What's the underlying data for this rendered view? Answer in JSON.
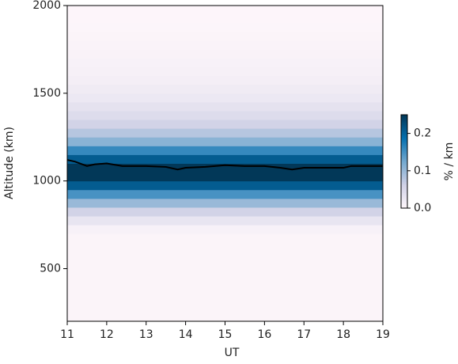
{
  "chart_data": {
    "type": "heatmap-line",
    "xlabel": "UT",
    "ylabel": "Altitude (km)",
    "xlim": [
      11,
      19
    ],
    "xticks": [
      11,
      12,
      13,
      14,
      15,
      16,
      17,
      18,
      19
    ],
    "ylim": [
      200,
      2000
    ],
    "yticks": [
      500,
      1000,
      1500,
      2000
    ],
    "heatmap": {
      "bins": [
        200,
        250,
        300,
        350,
        400,
        450,
        500,
        550,
        600,
        650,
        700,
        750,
        800,
        850,
        900,
        950,
        1000,
        1050,
        1100,
        1150,
        1200,
        1250,
        1300,
        1350,
        1400,
        1450,
        1500,
        1550,
        1600,
        1650,
        1700,
        1750,
        1800,
        1850,
        1900,
        1950,
        2000
      ],
      "values": [
        0.005,
        0.005,
        0.005,
        0.005,
        0.005,
        0.005,
        0.005,
        0.005,
        0.005,
        0.005,
        0.01,
        0.03,
        0.06,
        0.1,
        0.15,
        0.21,
        0.25,
        0.25,
        0.21,
        0.16,
        0.11,
        0.08,
        0.06,
        0.045,
        0.035,
        0.025,
        0.02,
        0.015,
        0.012,
        0.01,
        0.008,
        0.006,
        0.005,
        0.004,
        0.003,
        0.003
      ]
    },
    "colormap": [
      "#fff7fb",
      "#d0d1e6",
      "#74a9cf",
      "#0570b0",
      "#023858"
    ],
    "clim": [
      0,
      0.25
    ],
    "cticks": [
      {
        "value": 0,
        "label": "0.0"
      },
      {
        "value": 0.1,
        "label": "0.1"
      },
      {
        "value": 0.2,
        "label": "0.2"
      }
    ],
    "clabel": "% / km",
    "x": [
      11,
      11.2,
      11.5,
      11.7,
      12,
      12.4,
      13,
      13.5,
      13.8,
      14,
      14.5,
      15,
      15.5,
      16,
      16.4,
      16.7,
      17,
      17.5,
      18,
      18.2,
      18.5,
      19
    ],
    "series": [
      {
        "color": "#000000",
        "values": [
          1120,
          1110,
          1085,
          1095,
          1100,
          1085,
          1085,
          1080,
          1065,
          1075,
          1080,
          1090,
          1085,
          1085,
          1075,
          1065,
          1075,
          1075,
          1075,
          1085,
          1085,
          1085
        ]
      }
    ]
  }
}
